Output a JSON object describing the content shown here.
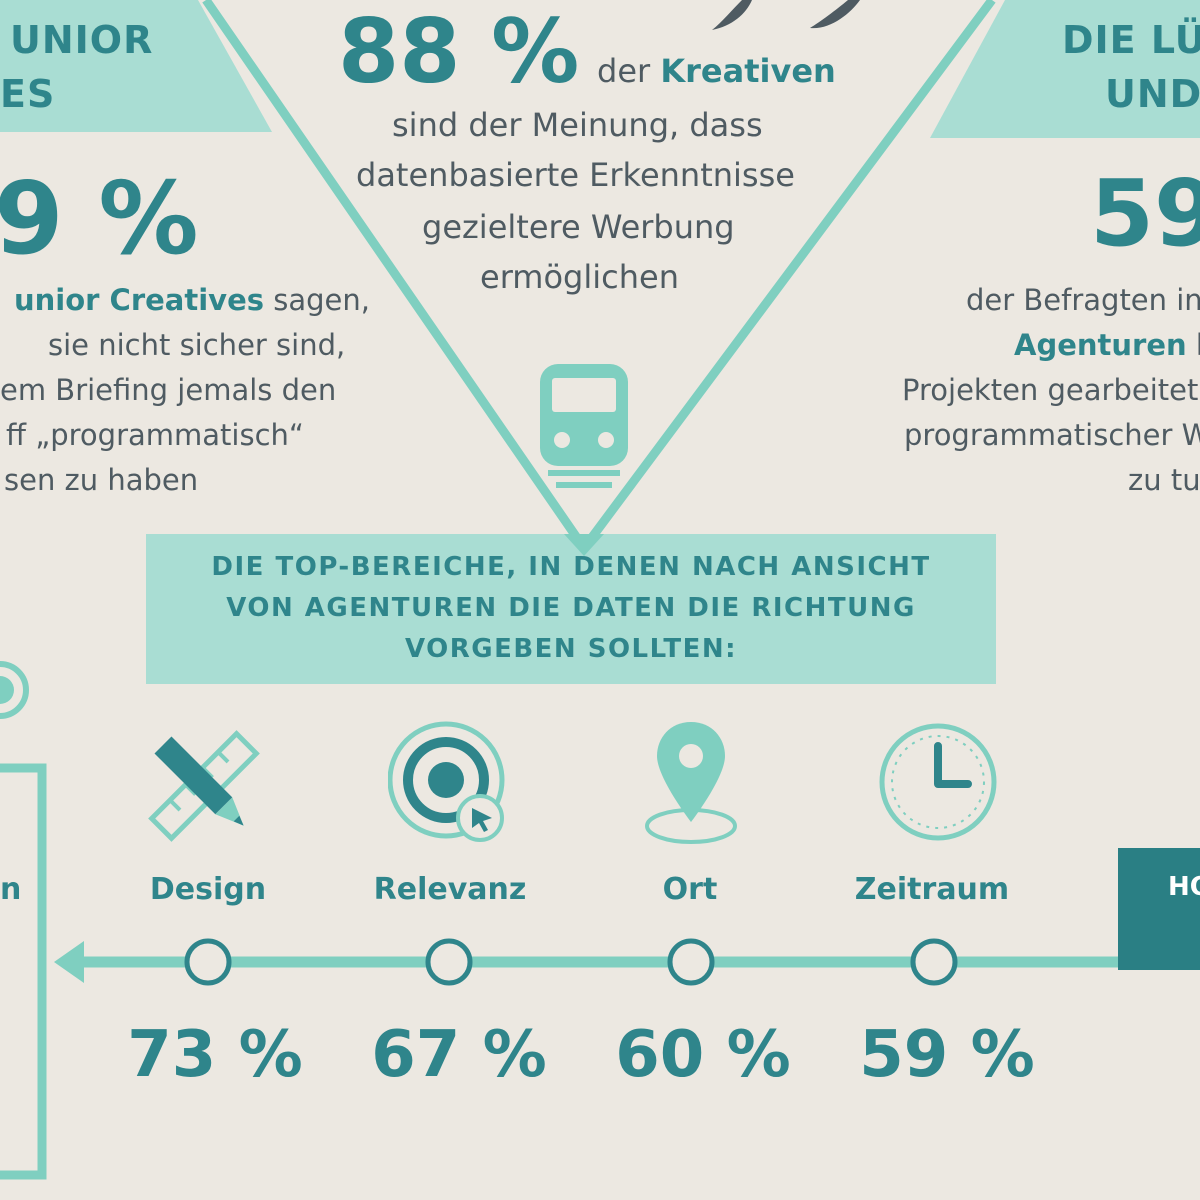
{
  "colors": {
    "accent": "#2f858b",
    "light_teal": "#a9ddd3",
    "line_teal": "#7fcfc0",
    "text_gray": "#4f5b62",
    "background": "#ece8e1",
    "dark_box": "#2a7f84"
  },
  "left_panel": {
    "heading_line1": "UNIOR",
    "heading_line2": "ES",
    "big_number": "9 %",
    "line1_bold": "unior Creatives",
    "line1_rest": " sagen,",
    "line2": "sie nicht sicher sind,",
    "line3": "em Briefing jemals den",
    "line4": "ff „programmatisch“",
    "line5": "sen zu haben"
  },
  "center_panel": {
    "big_number": "88 %",
    "lead_text": "der ",
    "lead_bold": "Kreativen",
    "line2": "sind der Meinung, dass",
    "line3": "datenbasierte Erkenntnisse",
    "line4": "gezieltere Werbung",
    "line5": "ermöglichen",
    "icon": "train-icon"
  },
  "right_panel": {
    "heading_line1": "DIE LÜC",
    "heading_line2": "UND",
    "big_number": "59",
    "line1": "der Befragten in",
    "line2_bold": "Agenturen",
    "line2_rest": " h",
    "line3": "Projekten gearbeitet",
    "line4": "programmatischer W",
    "line5": "zu tu"
  },
  "banner": {
    "line1": "DIE TOP-BEREICHE, IN DENEN NACH ANSICHT",
    "line2": "VON AGENTUREN DIE DATEN DIE RICHTUNG",
    "line3": "VORGEBEN SOLLTEN:"
  },
  "left_box_label": "n",
  "right_box_label": "HO",
  "categories": [
    {
      "label": "Design",
      "percent": "73 %",
      "icon": "pencil-ruler-icon"
    },
    {
      "label": "Relevanz",
      "percent": "67 %",
      "icon": "target-cursor-icon"
    },
    {
      "label": "Ort",
      "percent": "60 %",
      "icon": "location-pin-icon"
    },
    {
      "label": "Zeitraum",
      "percent": "59 %",
      "icon": "clock-icon"
    }
  ]
}
